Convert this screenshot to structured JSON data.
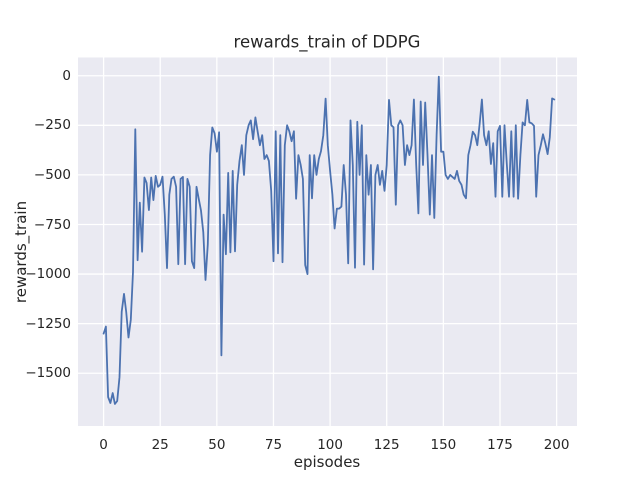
{
  "chart_data": {
    "type": "line",
    "title": "rewards_train of DDPG",
    "xlabel": "episodes",
    "ylabel": "rewards_train",
    "xticks": [
      0,
      25,
      50,
      75,
      100,
      125,
      150,
      175,
      200
    ],
    "yticks": [
      0,
      -250,
      -500,
      -750,
      -1000,
      -1250,
      -1500
    ],
    "xlim": [
      -11.3,
      209.0
    ],
    "ylim": [
      -1766,
      92
    ],
    "grid": true,
    "legend": "none",
    "colors": {
      "line": "#4c72b0",
      "axes_background": "#eaeaf2",
      "grid": "#ffffff",
      "figure_background": "#ffffff",
      "text": "#262626"
    },
    "x_start": 0,
    "x_step": 1,
    "series": [
      {
        "name": "rewards_train",
        "values": [
          -1300,
          -1265,
          -1620,
          -1650,
          -1600,
          -1655,
          -1640,
          -1520,
          -1190,
          -1100,
          -1190,
          -1320,
          -1230,
          -990,
          -270,
          -930,
          -640,
          -887,
          -513,
          -541,
          -677,
          -513,
          -627,
          -505,
          -560,
          -550,
          -509,
          -700,
          -970,
          -600,
          -520,
          -509,
          -560,
          -950,
          -520,
          -510,
          -950,
          -520,
          -560,
          -935,
          -970,
          -560,
          -620,
          -680,
          -790,
          -1030,
          -850,
          -400,
          -261,
          -290,
          -383,
          -285,
          -1410,
          -700,
          -900,
          -490,
          -890,
          -480,
          -885,
          -550,
          -430,
          -350,
          -500,
          -300,
          -250,
          -225,
          -320,
          -210,
          -280,
          -350,
          -300,
          -420,
          -400,
          -430,
          -580,
          -935,
          -280,
          -895,
          -300,
          -940,
          -350,
          -250,
          -280,
          -330,
          -280,
          -620,
          -400,
          -450,
          -520,
          -954,
          -1000,
          -400,
          -618,
          -400,
          -500,
          -420,
          -380,
          -300,
          -115,
          -350,
          -480,
          -600,
          -770,
          -670,
          -670,
          -660,
          -450,
          -600,
          -946,
          -225,
          -450,
          -968,
          -232,
          -500,
          -250,
          -952,
          -400,
          -600,
          -450,
          -976,
          -500,
          -450,
          -550,
          -480,
          -580,
          -450,
          -122,
          -250,
          -260,
          -650,
          -250,
          -225,
          -250,
          -450,
          -350,
          -400,
          -350,
          -120,
          -450,
          -694,
          -130,
          -450,
          -135,
          -400,
          -700,
          -400,
          -717,
          -300,
          -5,
          -383,
          -383,
          -500,
          -520,
          -500,
          -510,
          -520,
          -480,
          -530,
          -550,
          -600,
          -618,
          -400,
          -350,
          -282,
          -300,
          -350,
          -245,
          -120,
          -300,
          -350,
          -280,
          -445,
          -340,
          -610,
          -280,
          -253,
          -610,
          -250,
          -445,
          -610,
          -280,
          -610,
          -250,
          -620,
          -400,
          -235,
          -250,
          -122,
          -235,
          -240,
          -253,
          -610,
          -400,
          -350,
          -295,
          -340,
          -395,
          -310,
          -114,
          -120
        ]
      }
    ]
  }
}
